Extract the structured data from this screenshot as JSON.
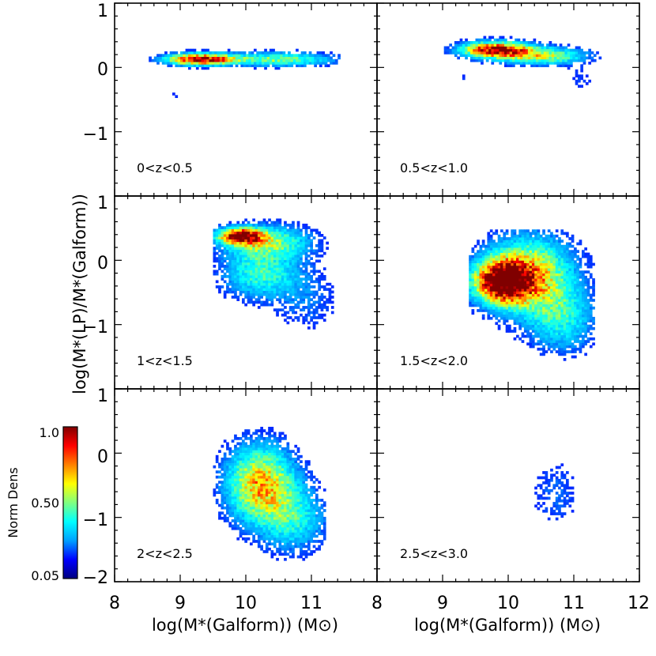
{
  "chart_data": {
    "type": "heatmap",
    "xlabel": "log(M*(Galform))  (M⊙)",
    "ylabel": "log(M*(LP)/M*(Galform))",
    "xlim": [
      8,
      12
    ],
    "ylim": [
      -2,
      1
    ],
    "x_ticks": [
      "8",
      "9",
      "10",
      "11",
      "8",
      "9",
      "10",
      "11",
      "12"
    ],
    "y_ticks_top_row": [
      "1",
      "0",
      "−1"
    ],
    "y_ticks_middle_row": [
      "1",
      "0",
      "−1"
    ],
    "y_ticks_bottom_row": [
      "1",
      "0",
      "−1",
      "−2"
    ],
    "colorbar": {
      "title": "Norm Dens",
      "ticks": [
        "1.0",
        "0.50",
        "0.05"
      ],
      "colors": [
        "#000080",
        "#0000ff",
        "#00a0ff",
        "#00ffff",
        "#80ff80",
        "#ffff00",
        "#ff8000",
        "#ff0000",
        "#800000"
      ]
    },
    "panels": [
      {
        "label": "0<z<0.5",
        "blobs": [
          {
            "x": 9.3,
            "y": 0.15,
            "sx": 0.35,
            "sy": 0.06,
            "peak": 1.0
          },
          {
            "x": 10.5,
            "y": 0.15,
            "sx": 0.55,
            "sy": 0.07,
            "peak": 0.45
          },
          {
            "x": 9.0,
            "y": -0.4,
            "sx": 0.15,
            "sy": 0.04,
            "peak": 0.08
          }
        ],
        "xrange": [
          8.2,
          11.4
        ],
        "yrange": [
          -0.55,
          0.35
        ]
      },
      {
        "label": "0.5<z<1.0",
        "blobs": [
          {
            "x": 9.8,
            "y": 0.3,
            "sx": 0.35,
            "sy": 0.08,
            "peak": 1.0
          },
          {
            "x": 10.5,
            "y": 0.2,
            "sx": 0.45,
            "sy": 0.09,
            "peak": 0.5
          },
          {
            "x": 9.3,
            "y": -0.15,
            "sx": 0.1,
            "sy": 0.04,
            "peak": 0.08
          },
          {
            "x": 11.1,
            "y": -0.15,
            "sx": 0.15,
            "sy": 0.15,
            "peak": 0.08
          }
        ],
        "xrange": [
          8.7,
          11.4
        ],
        "yrange": [
          -0.35,
          0.6
        ]
      },
      {
        "label": "1<z<1.5",
        "blobs": [
          {
            "x": 9.9,
            "y": 0.4,
            "sx": 0.22,
            "sy": 0.08,
            "peak": 1.0
          },
          {
            "x": 10.3,
            "y": 0.3,
            "sx": 0.45,
            "sy": 0.18,
            "peak": 0.45
          },
          {
            "x": 10.2,
            "y": -0.2,
            "sx": 0.4,
            "sy": 0.25,
            "peak": 0.35
          },
          {
            "x": 10.9,
            "y": -0.6,
            "sx": 0.35,
            "sy": 0.35,
            "peak": 0.12
          }
        ],
        "xrange": [
          9.5,
          11.3
        ],
        "yrange": [
          -1.35,
          0.75
        ]
      },
      {
        "label": "1.5<z<2.0",
        "blobs": [
          {
            "x": 9.9,
            "y": -0.3,
            "sx": 0.3,
            "sy": 0.22,
            "peak": 1.0
          },
          {
            "x": 10.3,
            "y": -0.2,
            "sx": 0.45,
            "sy": 0.4,
            "peak": 0.6
          },
          {
            "x": 10.8,
            "y": -0.9,
            "sx": 0.35,
            "sy": 0.35,
            "peak": 0.3
          }
        ],
        "xrange": [
          9.4,
          11.3
        ],
        "yrange": [
          -1.8,
          0.5
        ]
      },
      {
        "label": "2<z<2.5",
        "blobs": [
          {
            "x": 10.2,
            "y": -0.45,
            "sx": 0.35,
            "sy": 0.4,
            "peak": 0.65
          },
          {
            "x": 10.7,
            "y": -1.0,
            "sx": 0.35,
            "sy": 0.35,
            "peak": 0.3
          }
        ],
        "xrange": [
          9.5,
          11.2
        ],
        "yrange": [
          -1.75,
          0.45
        ]
      },
      {
        "label": "2.5<z<3.0",
        "blobs": [
          {
            "x": 10.7,
            "y": -0.6,
            "sx": 0.25,
            "sy": 0.35,
            "peak": 0.12
          }
        ],
        "xrange": [
          10.0,
          11.3
        ],
        "yrange": [
          -1.4,
          0.35
        ]
      }
    ]
  }
}
